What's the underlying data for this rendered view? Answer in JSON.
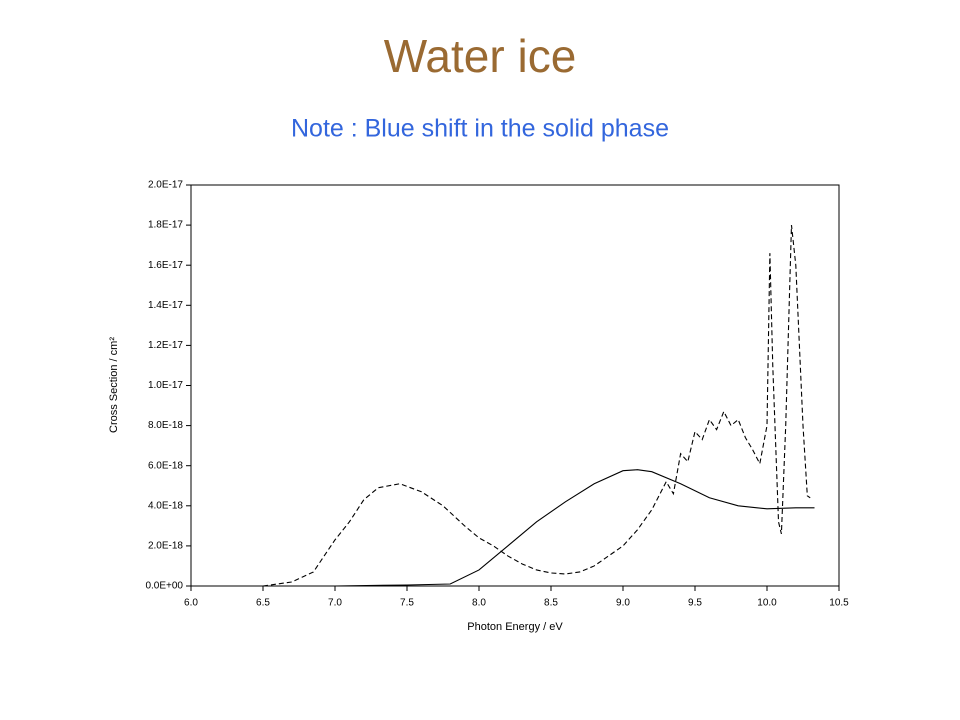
{
  "chart_data": {
    "type": "line",
    "title": "Water ice",
    "subtitle": "Note : Blue shift in the solid phase",
    "x_label": "Photon Energy / eV",
    "y_label": "Cross Section / cm²",
    "xlim": [
      6.0,
      10.5
    ],
    "xticks": [
      {
        "value": 6.0,
        "label": "6.0"
      },
      {
        "value": 6.5,
        "label": "6.5"
      },
      {
        "value": 7.0,
        "label": "7.0"
      },
      {
        "value": 7.5,
        "label": "7.5"
      },
      {
        "value": 8.0,
        "label": "8.0"
      },
      {
        "value": 8.5,
        "label": "8.5"
      },
      {
        "value": 9.0,
        "label": "9.0"
      },
      {
        "value": 9.5,
        "label": "9.5"
      },
      {
        "value": 10.0,
        "label": "10.0"
      },
      {
        "value": 10.5,
        "label": "10.5"
      }
    ],
    "ylim": [
      0,
      2e-17
    ],
    "yticks": [
      {
        "value": 0,
        "label": "0.0E+00"
      },
      {
        "value": 2e-18,
        "label": "2.0E-18"
      },
      {
        "value": 4e-18,
        "label": "4.0E-18"
      },
      {
        "value": 6e-18,
        "label": "6.0E-18"
      },
      {
        "value": 8e-18,
        "label": "8.0E-18"
      },
      {
        "value": 1e-17,
        "label": "1.0E-17"
      },
      {
        "value": 1.2e-17,
        "label": "1.2E-17"
      },
      {
        "value": 1.4e-17,
        "label": "1.4E-17"
      },
      {
        "value": 1.6e-17,
        "label": "1.6E-17"
      },
      {
        "value": 1.8e-17,
        "label": "1.8E-17"
      },
      {
        "value": 2e-17,
        "label": "2.0E-17"
      }
    ],
    "series": [
      {
        "color": "#000000",
        "dash": true,
        "x": [
          6.5,
          6.7,
          6.85,
          7.0,
          7.1,
          7.2,
          7.3,
          7.45,
          7.6,
          7.75,
          7.9,
          8.0,
          8.1,
          8.2,
          8.3,
          8.4,
          8.5,
          8.6,
          8.7,
          8.8,
          8.9,
          9.0,
          9.1,
          9.2,
          9.3,
          9.35,
          9.4,
          9.45,
          9.5,
          9.55,
          9.6,
          9.65,
          9.7,
          9.75,
          9.8,
          9.85,
          9.9,
          9.95,
          10.0,
          10.02,
          10.04,
          10.08,
          10.1,
          10.13,
          10.17,
          10.2,
          10.25,
          10.28,
          10.3
        ],
        "values": [
          0,
          2e-19,
          7e-19,
          2.3e-18,
          3.2e-18,
          4.3e-18,
          4.9e-18,
          5.1e-18,
          4.7e-18,
          4e-18,
          3e-18,
          2.4e-18,
          2e-18,
          1.5e-18,
          1.1e-18,
          8e-19,
          6.5e-19,
          6e-19,
          7e-19,
          1e-18,
          1.5e-18,
          2e-18,
          2.8e-18,
          3.8e-18,
          5.2e-18,
          4.6e-18,
          6.6e-18,
          6.2e-18,
          7.7e-18,
          7.3e-18,
          8.3e-18,
          7.8e-18,
          8.7e-18,
          8e-18,
          8.3e-18,
          7.4e-18,
          6.8e-18,
          6.1e-18,
          8e-18,
          1.66e-17,
          1.1e-17,
          3.2e-18,
          2.6e-18,
          8e-18,
          1.8e-17,
          1.6e-17,
          8e-18,
          4.5e-18,
          4.4e-18
        ]
      },
      {
        "color": "#000000",
        "dash": false,
        "x": [
          7.0,
          7.5,
          7.8,
          8.0,
          8.2,
          8.4,
          8.6,
          8.8,
          9.0,
          9.1,
          9.2,
          9.4,
          9.6,
          9.8,
          10.0,
          10.2,
          10.33
        ],
        "values": [
          0,
          5e-20,
          1e-19,
          8e-19,
          2e-18,
          3.2e-18,
          4.2e-18,
          5.1e-18,
          5.75e-18,
          5.8e-18,
          5.7e-18,
          5.1e-18,
          4.4e-18,
          4e-18,
          3.85e-18,
          3.9e-18,
          3.9e-18
        ]
      }
    ]
  }
}
